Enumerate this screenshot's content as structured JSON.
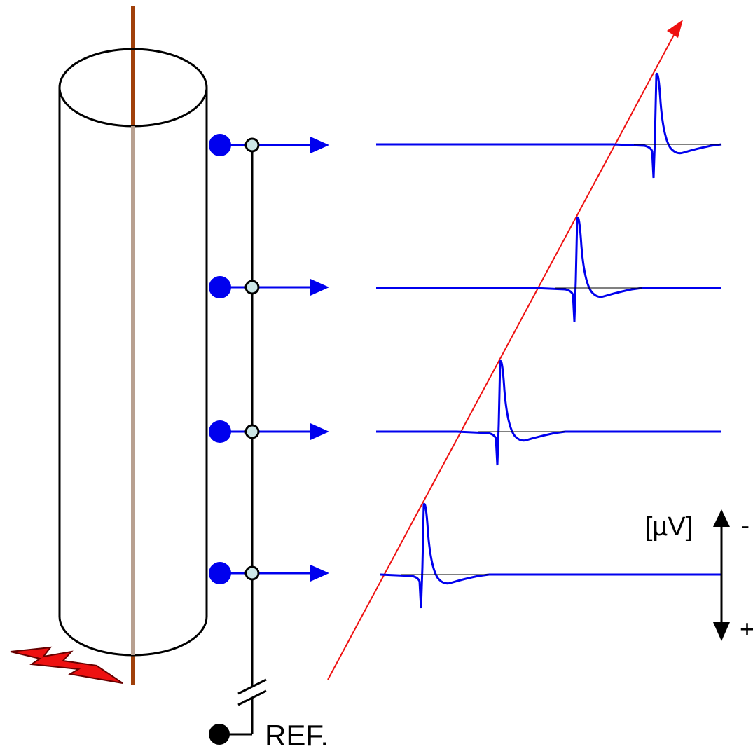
{
  "labels": {
    "unit": "[µV]",
    "minus": "-",
    "plus": "+",
    "reference": "REF."
  }
}
